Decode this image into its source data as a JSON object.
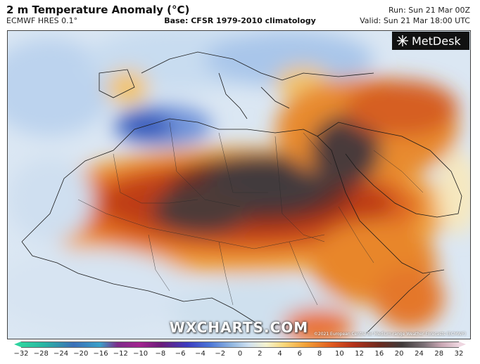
{
  "header": {
    "title": "2 m Temperature Anomaly (°C)",
    "model": "ECMWF HRES 0.1°",
    "base": "Base: CFSR 1979-2010 climatology",
    "run": "Run: Sun 21 Mar 00Z",
    "valid": "Valid: Sun 21 Mar 18:00 UTC"
  },
  "logo": {
    "text": "MetDesk",
    "icon": "metdesk-burst-icon"
  },
  "watermark": "WXCHARTS.COM",
  "credit": "©2021 European Centre for Medium-range Weather Forecasts (ECMWF)",
  "legend": {
    "ticks": [
      "−32",
      "−28",
      "−24",
      "−20",
      "−16",
      "−12",
      "−10",
      "−8",
      "−6",
      "−4",
      "−2",
      "0",
      "2",
      "4",
      "6",
      "8",
      "10",
      "12",
      "16",
      "20",
      "24",
      "28",
      "32"
    ]
  },
  "colors": {
    "sea_cool": "#cfe0f0",
    "cold": "#3c5fc0",
    "warm": "#f2a036",
    "hot": "#c9471c",
    "extreme": "#4a3f42"
  }
}
